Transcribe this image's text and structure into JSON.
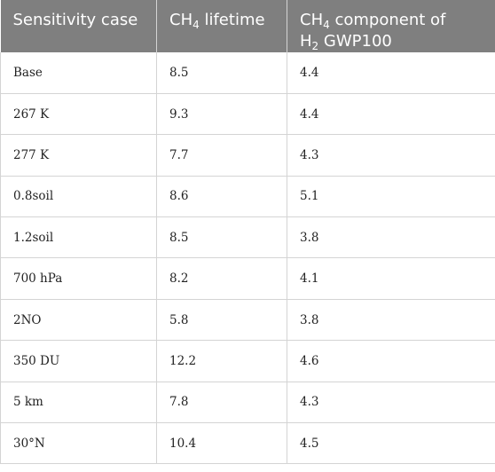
{
  "headers": {
    "col1": "Sensitivity case",
    "col2_pre": "CH",
    "col2_sub": "4",
    "col2_post": " lifetime",
    "col3_pre": "CH",
    "col3_sub": "4",
    "col3_mid": " component of",
    "col3_pre2": "H",
    "col3_sub2": "2",
    "col3_post": " GWP100"
  },
  "rows": [
    {
      "case": "Base",
      "lifetime": "8.5",
      "gwp": "4.4"
    },
    {
      "case": "267 K",
      "lifetime": "9.3",
      "gwp": "4.4"
    },
    {
      "case": "277 K",
      "lifetime": "7.7",
      "gwp": "4.3"
    },
    {
      "case": "0.8soil",
      "lifetime": "8.6",
      "gwp": "5.1"
    },
    {
      "case": "1.2soil",
      "lifetime": "8.5",
      "gwp": "3.8"
    },
    {
      "case": "700 hPa",
      "lifetime": "8.2",
      "gwp": "4.1"
    },
    {
      "case": "2NO",
      "lifetime": "5.8",
      "gwp": "3.8"
    },
    {
      "case": "350 DU",
      "lifetime": "12.2",
      "gwp": "4.6"
    },
    {
      "case": "5 km",
      "lifetime": "7.8",
      "gwp": "4.3"
    },
    {
      "case": "30°N",
      "lifetime": "10.4",
      "gwp": "4.5"
    }
  ]
}
